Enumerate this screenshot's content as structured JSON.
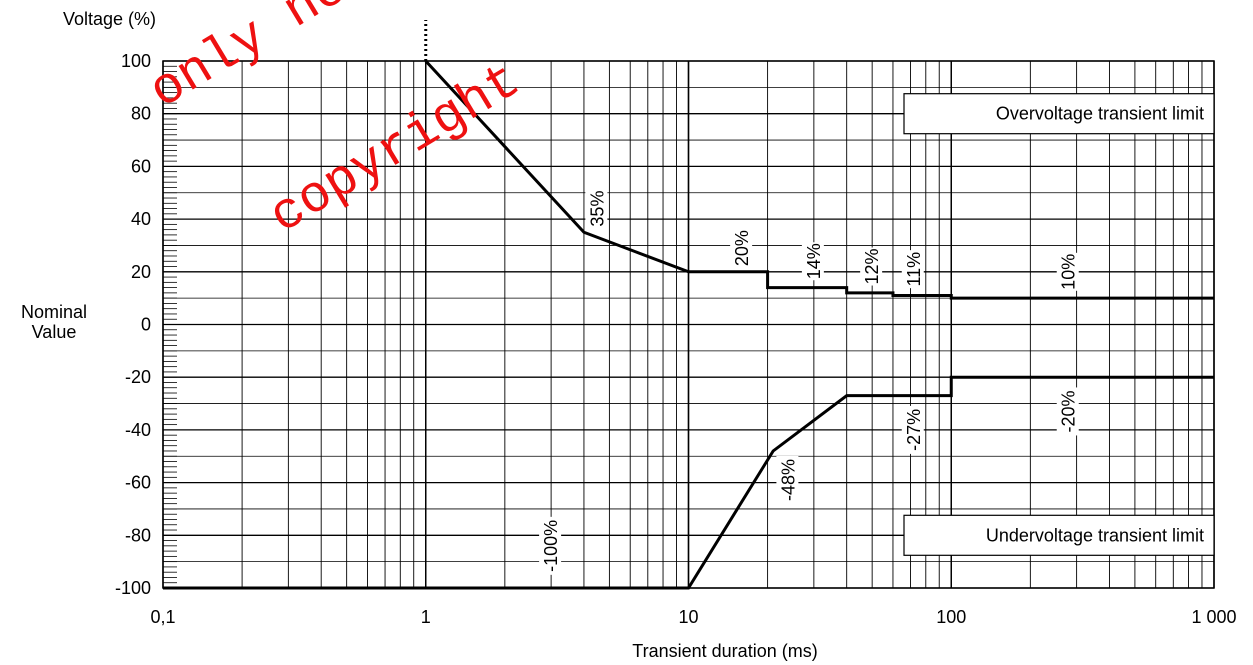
{
  "chart_data": {
    "type": "line",
    "ylabel": "Voltage (%)",
    "xlabel": "Transient duration (ms)",
    "nominal_label": [
      "Nominal",
      "Value"
    ],
    "x_scale": "log",
    "xlim": [
      0.1,
      1000
    ],
    "ylim": [
      -100,
      100
    ],
    "grid": true,
    "x_ticks": [
      {
        "value": 0.1,
        "label": "0,1"
      },
      {
        "value": 1,
        "label": "1"
      },
      {
        "value": 10,
        "label": "10"
      },
      {
        "value": 100,
        "label": "100"
      },
      {
        "value": 1000,
        "label": "1 000"
      }
    ],
    "y_ticks": [
      {
        "value": 100,
        "label": "100"
      },
      {
        "value": 80,
        "label": "80"
      },
      {
        "value": 60,
        "label": "60"
      },
      {
        "value": 40,
        "label": "40"
      },
      {
        "value": 20,
        "label": "20"
      },
      {
        "value": 0,
        "label": "0"
      },
      {
        "value": -20,
        "label": "-20"
      },
      {
        "value": -40,
        "label": "-40"
      },
      {
        "value": -60,
        "label": "-60"
      },
      {
        "value": -80,
        "label": "-80"
      },
      {
        "value": -100,
        "label": "-100"
      }
    ],
    "series": [
      {
        "name": "Overvoltage transient limit",
        "x": [
          1,
          4,
          10,
          20,
          20,
          40,
          40,
          60,
          60,
          100,
          100,
          1000
        ],
        "y": [
          100,
          35,
          20,
          20,
          14,
          14,
          12,
          12,
          11,
          11,
          10,
          10
        ]
      },
      {
        "name": "Undervoltage transient limit",
        "x": [
          0.1,
          10,
          21,
          40,
          100,
          100,
          1000
        ],
        "y": [
          -100,
          -100,
          -48,
          -27,
          -27,
          -20,
          -20
        ]
      }
    ],
    "vertical_dotted": {
      "x": 1,
      "y_from": 100,
      "y_to": 115
    },
    "value_labels": [
      {
        "text": "35%",
        "x": 4.5,
        "y": 44
      },
      {
        "text": "20%",
        "x": 16,
        "y": 29
      },
      {
        "text": "14%",
        "x": 30,
        "y": 24
      },
      {
        "text": "12%",
        "x": 50,
        "y": 22
      },
      {
        "text": "11%",
        "x": 72,
        "y": 21
      },
      {
        "text": "10%",
        "x": 280,
        "y": 20
      },
      {
        "text": "-20%",
        "x": 280,
        "y": -33
      },
      {
        "text": "-27%",
        "x": 72,
        "y": -40
      },
      {
        "text": "-48%",
        "x": 24,
        "y": -59
      },
      {
        "text": "-100%",
        "x": 3,
        "y": -84
      }
    ],
    "annotations": [
      {
        "text": "Overvoltage transient limit",
        "y": 80
      },
      {
        "text": "Undervoltage transient limit",
        "y": -80
      }
    ]
  },
  "watermark": {
    "line1": "only    ne    w",
    "line2": "copyright",
    "color": "#ee1111"
  }
}
